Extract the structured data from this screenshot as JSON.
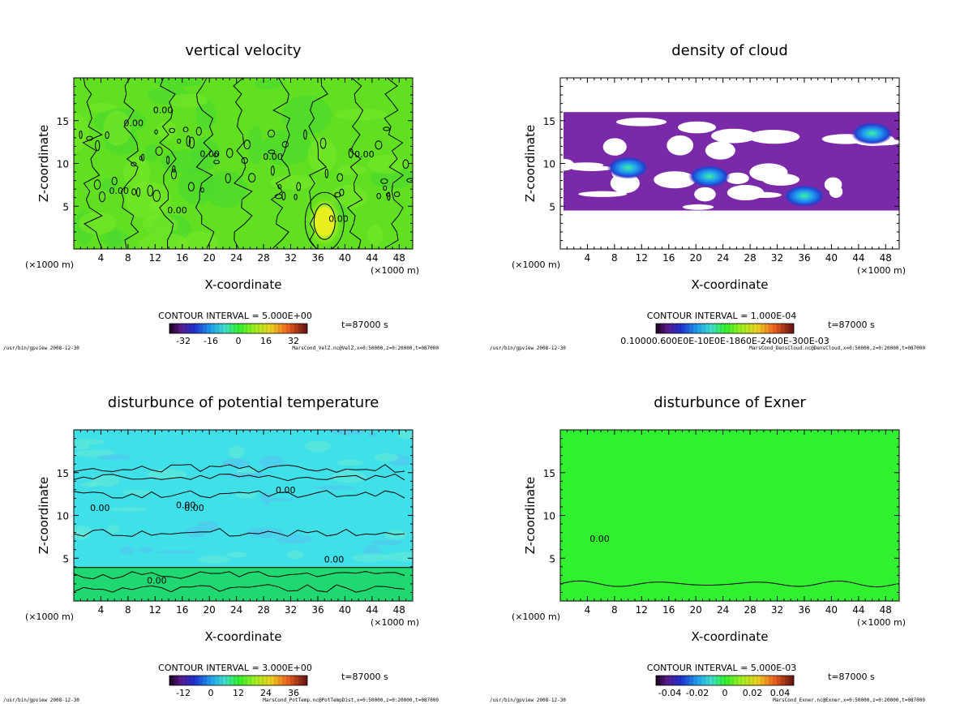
{
  "chart_data": [
    {
      "type": "heatmap",
      "title": "vertical velocity",
      "xlabel": "X-coordinate",
      "ylabel": "Z-coordinate",
      "x_unit_left": "(×1000 m)",
      "x_unit_right": "(×1000 m)",
      "xlim": [
        0,
        50
      ],
      "ylim": [
        0,
        20
      ],
      "xticks": [
        4,
        8,
        12,
        16,
        20,
        24,
        28,
        32,
        36,
        40,
        44,
        48
      ],
      "yticks": [
        5,
        10,
        15
      ],
      "contour_interval": "CONTOUR INTERVAL = 5.000E+00",
      "time": "t=87000 s",
      "colorbar_range": [
        -40,
        40
      ],
      "colorbar_ticks": [
        "-32",
        "-16",
        "0",
        "16",
        "32"
      ],
      "contour_labels": [
        "0.00",
        "0.00",
        "0.00",
        "0.00",
        "0.00",
        "0.00",
        "0.00",
        "0.00"
      ],
      "footer_left": "/usr/bin/gpview 2008-12-30",
      "footer_right": "MarsCond_VelZ.nc@VelZ,x=0:50000,z=0:20000,t=087000"
    },
    {
      "type": "heatmap",
      "title": "density of cloud",
      "xlabel": "X-coordinate",
      "ylabel": "Z-coordinate",
      "x_unit_left": "(×1000 m)",
      "x_unit_right": "(×1000 m)",
      "xlim": [
        0,
        50
      ],
      "ylim": [
        0,
        20
      ],
      "xticks": [
        4,
        8,
        12,
        16,
        20,
        24,
        28,
        32,
        36,
        40,
        44,
        48
      ],
      "yticks": [
        5,
        10,
        15
      ],
      "contour_interval": "CONTOUR INTERVAL = 1.000E-04",
      "time": "t=87000 s",
      "colorbar_range": [
        0,
        0.002
      ],
      "colorbar_ticks": [
        "0.10000.600E0E-10E0E-1860E-2400E-300E-03"
      ],
      "footer_left": "/usr/bin/gpview 2008-12-30",
      "footer_right": "MarsCond_DensCloud.nc@DensCloud,x=0:50000,z=0:20000,t=087000"
    },
    {
      "type": "heatmap",
      "title": "disturbunce of potential temperature",
      "xlabel": "X-coordinate",
      "ylabel": "Z-coordinate",
      "x_unit_left": "(×1000 m)",
      "x_unit_right": "(×1000 m)",
      "xlim": [
        0,
        50
      ],
      "ylim": [
        0,
        20
      ],
      "xticks": [
        4,
        8,
        12,
        16,
        20,
        24,
        28,
        32,
        36,
        40,
        44,
        48
      ],
      "yticks": [
        5,
        10,
        15
      ],
      "contour_interval": "CONTOUR INTERVAL = 3.000E+00",
      "time": "t=87000 s",
      "colorbar_range": [
        -18,
        42
      ],
      "colorbar_ticks": [
        "-12",
        "0",
        "12",
        "24",
        "36"
      ],
      "contour_labels": [
        "0.00",
        "0.00",
        "0.00",
        "0.00",
        "0.00",
        "0.00"
      ],
      "footer_left": "/usr/bin/gpview 2008-12-30",
      "footer_right": "MarsCond_PotTemp.nc@PotTempDist,x=0:50000,z=0:20000,t=087000"
    },
    {
      "type": "heatmap",
      "title": "disturbunce of Exner",
      "xlabel": "X-coordinate",
      "ylabel": "Z-coordinate",
      "x_unit_left": "(×1000 m)",
      "x_unit_right": "(×1000 m)",
      "xlim": [
        0,
        50
      ],
      "ylim": [
        0,
        20
      ],
      "xticks": [
        4,
        8,
        12,
        16,
        20,
        24,
        28,
        32,
        36,
        40,
        44,
        48
      ],
      "yticks": [
        5,
        10,
        15
      ],
      "contour_interval": "CONTOUR INTERVAL = 5.000E-03",
      "time": "t=87000 s",
      "colorbar_range": [
        -0.05,
        0.05
      ],
      "colorbar_ticks": [
        "-0.04",
        "-0.02",
        "0",
        "0.02",
        "0.04"
      ],
      "contour_labels": [
        "0.00"
      ],
      "footer_left": "/usr/bin/gpview 2008-12-30",
      "footer_right": "MarsCond_Exner.nc@Exner,x=0:50000,z=0:20000,t=087000"
    }
  ]
}
